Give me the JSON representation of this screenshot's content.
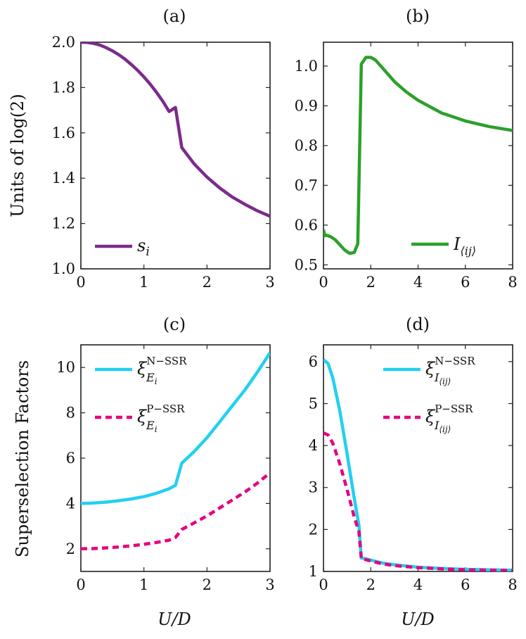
{
  "colors": {
    "purple": "#7b2c8b",
    "green": "#2ca02c",
    "cyan": "#22d0f0",
    "magenta": "#e6007e"
  },
  "labels": {
    "units_log2": "Units of log(2)",
    "superselection": "Superselection Factors",
    "x_c": "U/D",
    "x_d": "U/D"
  },
  "legend_text": {
    "a_s": "s",
    "a_s_sub": "i",
    "b_I": "I",
    "b_I_sub": "⟨ij⟩",
    "c_n_main": "ξ",
    "c_n_sup": "N−SSR",
    "c_n_sub_E": "E",
    "c_n_sub_i": "i",
    "c_p_main": "ξ",
    "c_p_sup": "P−SSR",
    "c_p_sub_E": "E",
    "c_p_sub_i": "i",
    "d_n_main": "ξ",
    "d_n_sup": "N−SSR",
    "d_n_sub_I": "I",
    "d_n_sub_ij": "⟨ij⟩",
    "d_p_main": "ξ",
    "d_p_sup": "P−SSR",
    "d_p_sub_I": "I",
    "d_p_sub_ij": "⟨ij⟩"
  },
  "chart_data": [
    {
      "id": "a",
      "type": "line",
      "title": "(a)",
      "xlabel": "",
      "ylabel": "Units of log(2)",
      "xlim": [
        0,
        3
      ],
      "ylim": [
        1.0,
        2.0
      ],
      "xticks": [
        0,
        1,
        2,
        3
      ],
      "xtick_labels": [
        "0",
        "1",
        "2",
        "3"
      ],
      "yticks": [
        1.0,
        1.2,
        1.4,
        1.6,
        1.8,
        2.0
      ],
      "ytick_labels": [
        "1.0",
        "1.2",
        "1.4",
        "1.6",
        "1.8",
        "2.0"
      ],
      "legend_position": "bottom-left",
      "series": [
        {
          "name": "s_i",
          "color": "#7b2c8b",
          "dashed": false,
          "x": [
            0,
            0.1,
            0.2,
            0.3,
            0.4,
            0.5,
            0.6,
            0.7,
            0.8,
            0.9,
            1.0,
            1.1,
            1.2,
            1.3,
            1.4,
            1.5,
            1.6,
            1.8,
            2.0,
            2.2,
            2.4,
            2.6,
            2.8,
            3.0
          ],
          "y": [
            2.0,
            1.999,
            1.995,
            1.988,
            1.976,
            1.962,
            1.945,
            1.925,
            1.902,
            1.876,
            1.847,
            1.815,
            1.779,
            1.739,
            1.694,
            1.712,
            1.535,
            1.462,
            1.405,
            1.357,
            1.317,
            1.285,
            1.256,
            1.232
          ]
        }
      ]
    },
    {
      "id": "b",
      "type": "line",
      "title": "(b)",
      "xlabel": "",
      "ylabel": "",
      "xlim": [
        0,
        8
      ],
      "ylim": [
        0.49,
        1.06
      ],
      "xticks": [
        0,
        2,
        4,
        6,
        8
      ],
      "xtick_labels": [
        "0",
        "2",
        "4",
        "6",
        "8"
      ],
      "yticks": [
        0.5,
        0.6,
        0.7,
        0.8,
        0.9,
        1.0
      ],
      "ytick_labels": [
        "0.5",
        "0.6",
        "0.7",
        "0.8",
        "0.9",
        "1.0"
      ],
      "legend_position": "bottom-right",
      "series": [
        {
          "name": "I_<ij>",
          "color": "#2ca02c",
          "dashed": false,
          "x": [
            0,
            0.05,
            0.1,
            0.3,
            0.5,
            0.7,
            0.9,
            1.1,
            1.3,
            1.45,
            1.6,
            1.8,
            2.0,
            2.2,
            2.5,
            3.0,
            3.5,
            4.0,
            5.0,
            6.0,
            7.0,
            8.0
          ],
          "y": [
            0.589,
            0.573,
            0.575,
            0.571,
            0.563,
            0.55,
            0.537,
            0.529,
            0.531,
            0.553,
            1.005,
            1.022,
            1.022,
            1.015,
            0.995,
            0.961,
            0.935,
            0.914,
            0.882,
            0.862,
            0.848,
            0.838
          ]
        }
      ]
    },
    {
      "id": "c",
      "type": "line",
      "title": "(c)",
      "xlabel": "U/D",
      "ylabel": "Superselection Factors",
      "xlim": [
        0,
        3
      ],
      "ylim": [
        1.0,
        11.0
      ],
      "xticks": [
        0,
        1,
        2,
        3
      ],
      "xtick_labels": [
        "0",
        "1",
        "2",
        "3"
      ],
      "yticks": [
        2,
        4,
        6,
        8,
        10
      ],
      "ytick_labels": [
        "2",
        "4",
        "6",
        "8",
        "10"
      ],
      "legend_position": "top-left",
      "series": [
        {
          "name": "xi^N-SSR_E_i",
          "color": "#22d0f0",
          "dashed": false,
          "x": [
            0,
            0.2,
            0.4,
            0.6,
            0.8,
            1.0,
            1.2,
            1.4,
            1.5,
            1.6,
            1.8,
            2.0,
            2.2,
            2.4,
            2.6,
            2.8,
            3.0
          ],
          "y": [
            4.0,
            4.02,
            4.06,
            4.12,
            4.2,
            4.3,
            4.45,
            4.65,
            4.8,
            5.78,
            6.3,
            6.9,
            7.6,
            8.3,
            9.0,
            9.8,
            10.65
          ]
        },
        {
          "name": "xi^P-SSR_E_i",
          "color": "#e6007e",
          "dashed": true,
          "x": [
            0,
            0.2,
            0.4,
            0.6,
            0.8,
            1.0,
            1.2,
            1.4,
            1.5,
            1.6,
            1.8,
            2.0,
            2.2,
            2.4,
            2.6,
            2.8,
            3.0
          ],
          "y": [
            2.0,
            2.01,
            2.04,
            2.08,
            2.13,
            2.2,
            2.28,
            2.38,
            2.5,
            2.85,
            3.15,
            3.45,
            3.8,
            4.15,
            4.5,
            4.9,
            5.35
          ]
        }
      ]
    },
    {
      "id": "d",
      "type": "line",
      "title": "(d)",
      "xlabel": "U/D",
      "ylabel": "",
      "xlim": [
        0,
        8
      ],
      "ylim": [
        1.0,
        6.4
      ],
      "xticks": [
        0,
        2,
        4,
        6,
        8
      ],
      "xtick_labels": [
        "0",
        "2",
        "4",
        "6",
        "8"
      ],
      "yticks": [
        1,
        2,
        3,
        4,
        5,
        6
      ],
      "ytick_labels": [
        "1",
        "2",
        "3",
        "4",
        "5",
        "6"
      ],
      "legend_position": "top-right",
      "series": [
        {
          "name": "xi^N-SSR_I_<ij>",
          "color": "#22d0f0",
          "dashed": false,
          "x": [
            0,
            0.2,
            0.4,
            0.7,
            1.0,
            1.3,
            1.5,
            1.6,
            1.8,
            2.0,
            2.5,
            3.0,
            4.0,
            5.0,
            6.0,
            7.0,
            8.0
          ],
          "y": [
            6.05,
            5.95,
            5.6,
            4.8,
            3.8,
            2.75,
            2.1,
            1.32,
            1.3,
            1.27,
            1.2,
            1.16,
            1.1,
            1.07,
            1.05,
            1.04,
            1.03
          ]
        },
        {
          "name": "xi^P-SSR_I_<ij>",
          "color": "#e6007e",
          "dashed": true,
          "x": [
            0,
            0.2,
            0.4,
            0.7,
            1.0,
            1.3,
            1.5,
            1.6,
            1.8,
            2.0,
            2.5,
            3.0,
            4.0,
            5.0,
            6.0,
            7.0,
            8.0
          ],
          "y": [
            4.3,
            4.25,
            4.05,
            3.55,
            2.95,
            2.3,
            1.95,
            1.3,
            1.28,
            1.25,
            1.18,
            1.14,
            1.09,
            1.06,
            1.04,
            1.03,
            1.02
          ]
        }
      ]
    }
  ]
}
